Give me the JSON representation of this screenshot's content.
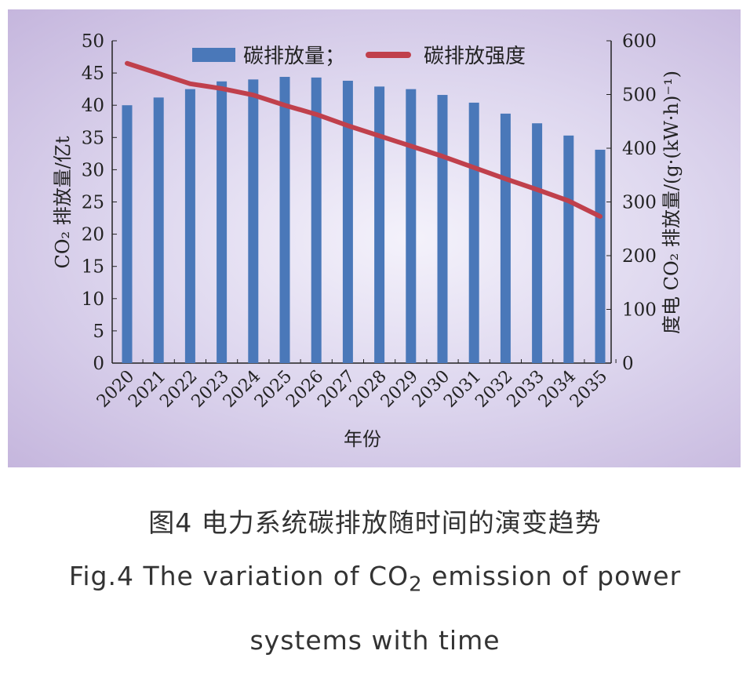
{
  "chart_data": {
    "type": "bar+line",
    "categories": [
      "2020",
      "2021",
      "2022",
      "2023",
      "2024",
      "2025",
      "2026",
      "2027",
      "2028",
      "2029",
      "2030",
      "2031",
      "2032",
      "2033",
      "2034",
      "2035"
    ],
    "series": [
      {
        "name": "碳排放量；",
        "type": "bar",
        "axis": "left",
        "color": "#4a78b9",
        "values": [
          40.0,
          41.2,
          42.5,
          43.7,
          44.0,
          44.4,
          44.3,
          43.8,
          42.9,
          42.5,
          41.6,
          40.4,
          38.7,
          37.2,
          35.3,
          33.1
        ]
      },
      {
        "name": "碳排放强度",
        "type": "line",
        "axis": "right",
        "color": "#c0404c",
        "values": [
          558,
          539,
          520,
          511,
          499,
          480,
          463,
          442,
          423,
          404,
          385,
          364,
          343,
          323,
          302,
          273
        ]
      }
    ],
    "xlabel": "年份",
    "ylabel_left": "CO₂ 排放量/亿t",
    "ylabel_right": "度电 CO₂ 排放量/(g·(kW·h)⁻¹)",
    "ylim_left": [
      0,
      50
    ],
    "yticks_left": [
      0,
      5,
      10,
      15,
      20,
      25,
      30,
      35,
      40,
      45,
      50
    ],
    "ylim_right": [
      0,
      600
    ],
    "yticks_right": [
      0,
      100,
      200,
      300,
      400,
      500,
      600
    ],
    "legend": "top-center",
    "grid": false
  },
  "caption": {
    "cn": "图4 电力系统碳排放随时间的演变趋势",
    "en_1": "Fig.4 The variation of CO",
    "en_sub": "2",
    "en_2": " emission of power",
    "en_3": "systems with time"
  }
}
